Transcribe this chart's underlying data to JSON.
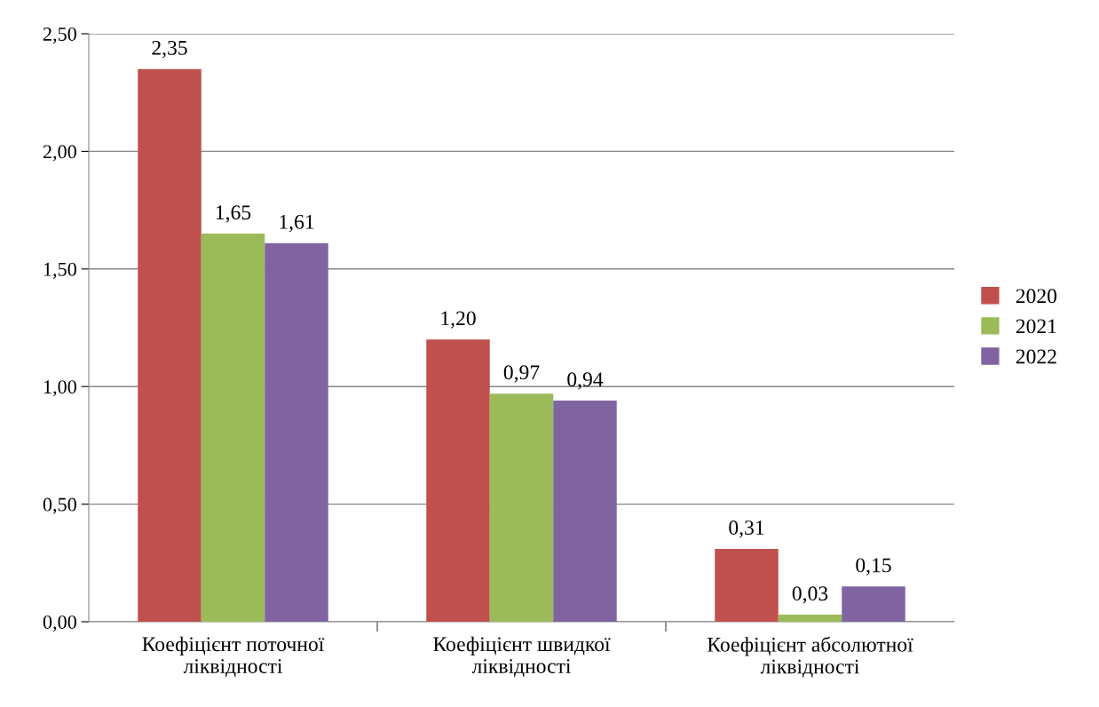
{
  "chart_data": {
    "type": "bar",
    "categories": [
      "Коефіцієнт поточної ліквідності",
      "Коефіцієнт швидкої ліквідності",
      "Коефіцієнт абсолютної ліквідності"
    ],
    "series": [
      {
        "name": "2020",
        "color": "#c0504d",
        "values": [
          2.35,
          1.2,
          0.31
        ],
        "value_labels": [
          "2,35",
          "1,20",
          "0,31"
        ]
      },
      {
        "name": "2021",
        "color": "#9bbb59",
        "values": [
          1.65,
          0.97,
          0.03
        ],
        "value_labels": [
          "1,65",
          "0,97",
          "0,03"
        ]
      },
      {
        "name": "2022",
        "color": "#8064a2",
        "values": [
          1.61,
          0.94,
          0.15
        ],
        "value_labels": [
          "1,61",
          "0,94",
          "0,15"
        ]
      }
    ],
    "ylim": [
      0,
      2.5
    ],
    "yticks": [
      {
        "value": 0,
        "label": "0,00"
      },
      {
        "value": 0.5,
        "label": "0,50"
      },
      {
        "value": 1,
        "label": "1,00"
      },
      {
        "value": 1.5,
        "label": "1,50"
      },
      {
        "value": 2,
        "label": "2,00"
      },
      {
        "value": 2.5,
        "label": "2,50"
      }
    ],
    "grid": "y",
    "legend": "right"
  }
}
